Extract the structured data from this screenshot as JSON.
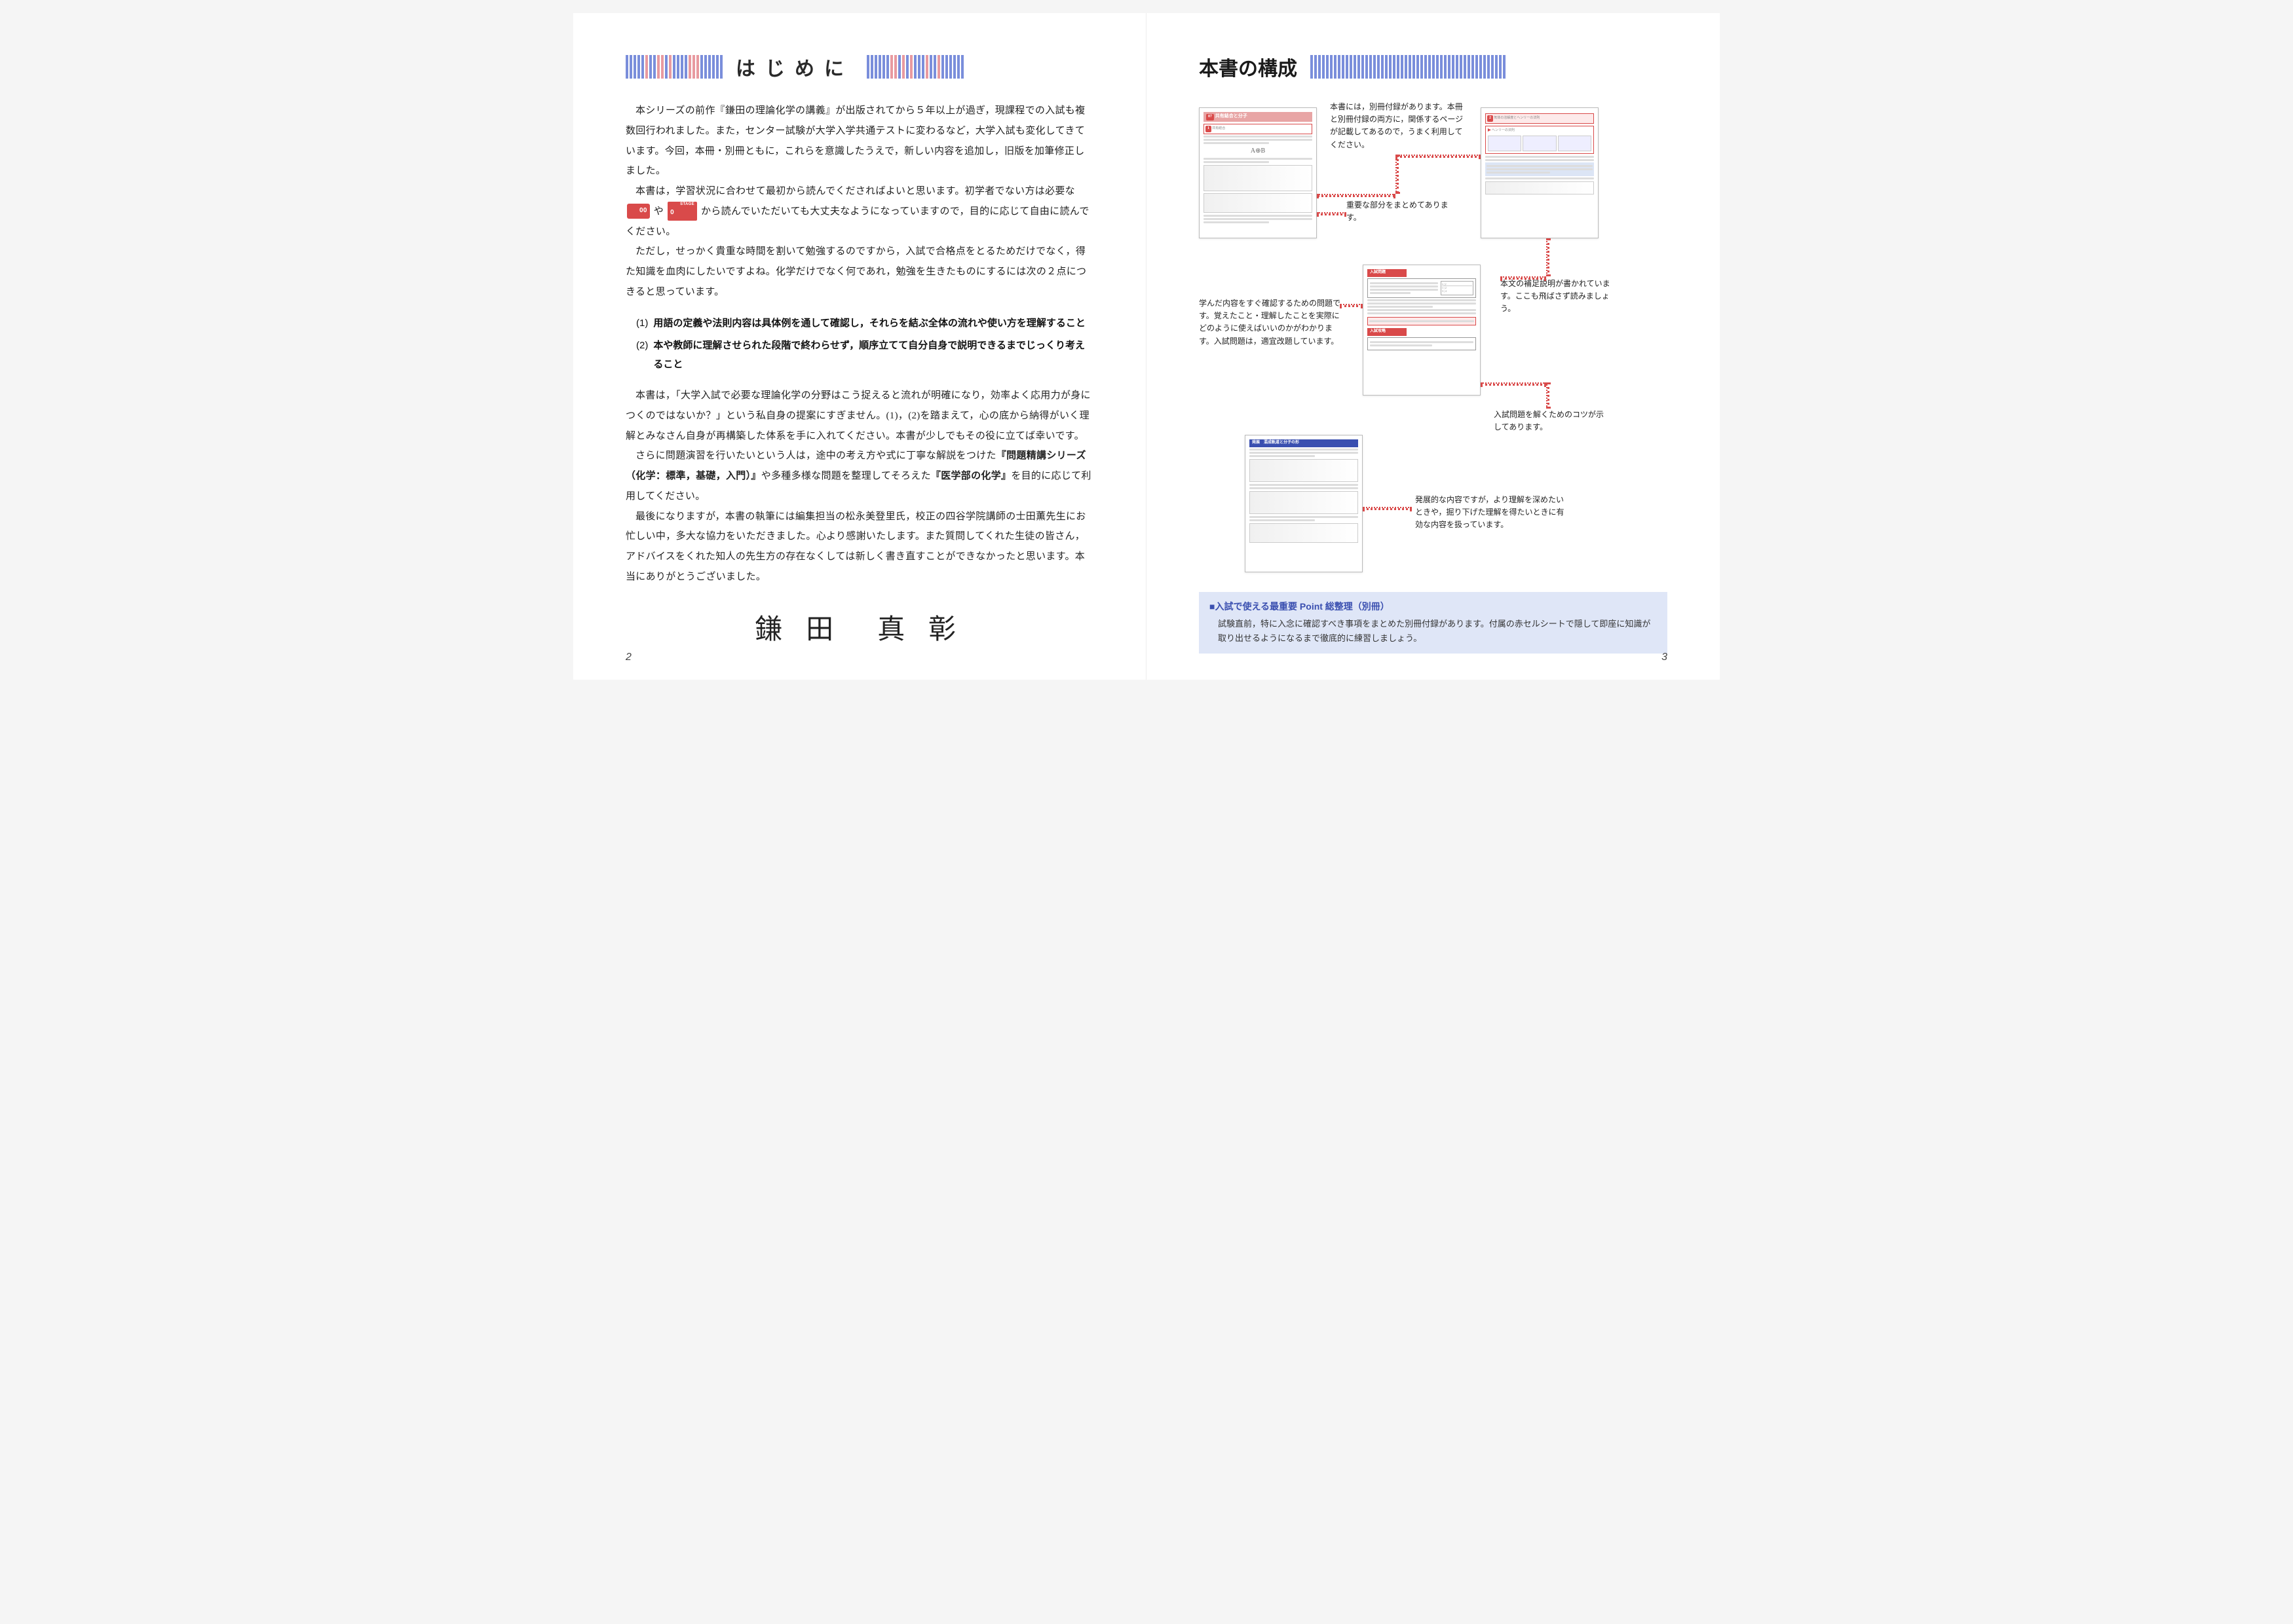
{
  "left_page": {
    "title": "はじめに",
    "page_number": "2",
    "paragraphs": {
      "p1": "本シリーズの前作『鎌田の理論化学の講義』が出版されてから５年以上が過ぎ，現課程での入試も複数回行われました。また，センター試験が大学入学共通テストに変わるなど，大学入試も変化してきています。今回，本冊・別冊ともに，これらを意識したうえで，新しい内容を追加し，旧版を加筆修正しました。",
      "p2a": "本書は，学習状況に合わせて最初から読んでくださればよいと思います。初学者でない方は必要な",
      "p2b": "や",
      "p2c": "から読んでいただいても大丈夫なようになっていますので，目的に応じて自由に読んでください。",
      "p3": "ただし，せっかく貴重な時間を割いて勉強するのですから，入試で合格点をとるためだけでなく，得た知識を血肉にしたいですよね。化学だけでなく何であれ，勉強を生きたものにするには次の２点につきると思っています。",
      "list1_num": "(1)",
      "list1": "用語の定義や法則内容は具体例を通して確認し，それらを結ぶ全体の流れや使い方を理解すること",
      "list2_num": "(2)",
      "list2": "本や教師に理解させられた段階で終わらせず，順序立てて自分自身で説明できるまでじっくり考えること",
      "p4": "本書は，「大学入試で必要な理論化学の分野はこう捉えると流れが明確になり，効率よく応用力が身につくのではないか？」という私自身の提案にすぎません。(1)，(2)を踏まえて，心の底から納得がいく理解とみなさん自身が再構築した体系を手に入れてください。本書が少しでもその役に立てば幸いです。",
      "p5a": "さらに問題演習を行いたいという人は，途中の考え方や式に丁寧な解説をつけた",
      "p5bold": "『問題精講シリーズ（化学：標準，基礎，入門）』",
      "p5b": "や多種多様な問題を整理してそろえた",
      "p5bold2": "『医学部の化学』",
      "p5c": "を目的に応じて利用してください。",
      "p6": "最後になりますが，本書の執筆には編集担当の松永美登里氏，校正の四谷学院講師の士田薫先生にお忙しい中，多大な協力をいただきました。心より感謝いたします。また質問してくれた生徒の皆さん，アドバイスをくれた知人の先生方の存在なくしては新しく書き直すことができなかったと思います。本当にありがとうございました。"
    },
    "badge1": "00",
    "badge2": "0",
    "badge2_label": "STAGE",
    "signature": "鎌 田　真 彰"
  },
  "right_page": {
    "title": "本書の構成",
    "page_number": "3",
    "callouts": {
      "c1": "本書には，別冊付録があります。本冊と別冊付録の両方に，関係するページが記載してあるので，うまく利用してください。",
      "c2": "重要な部分をまとめてあります。",
      "c3": "本文の補足説明が書かれています。ここも飛ばさず読みましょう。",
      "c4": "学んだ内容をすぐ確認するための問題です。覚えたこと・理解したことを実際にどのように使えばいいのかがわかります。入試問題は，適宜改題しています。",
      "c5": "入試問題を解くためのコツが示してあります。",
      "c6": "発展的な内容ですが，より理解を深めたいときや，掘り下げた理解を得たいときに有効な内容を扱っています。"
    },
    "samples": {
      "s1_num": "07",
      "s1_title": "共有結合と分子",
      "s1_sub": "共有結合",
      "s2_title": "気体の溶解度とヘンリーの法則",
      "s2_sub": "ヘンリーの法則"
    },
    "bottom_box": {
      "title": "■入試で使える最重要 Point 総整理（別冊）",
      "body": "試験直前，特に入念に確認すべき事項をまとめた別冊付録があります。付属の赤セルシートで隠して即座に知識が取り出せるようになるまで徹底的に練習しましょう。"
    }
  },
  "colors": {
    "barcode_blue": "#7a8edb",
    "barcode_red": "#e89aa0",
    "accent_red": "#d94a4a",
    "box_bg": "#dfe6f7",
    "box_title": "#3a4fb0"
  },
  "barcode_pattern_left_leading": [
    "b",
    "b",
    "b",
    "b",
    "b",
    "r",
    "b",
    "b",
    "r",
    "r",
    "b",
    "r",
    "b",
    "b",
    "b",
    "b",
    "r",
    "r",
    "r",
    "b",
    "b",
    "b",
    "b",
    "b",
    "b"
  ],
  "barcode_pattern_trailing": [
    "b",
    "b",
    "b",
    "b",
    "b",
    "b",
    "r",
    "r",
    "b",
    "r",
    "b",
    "r",
    "b",
    "b",
    "b",
    "r",
    "b",
    "b",
    "r",
    "b",
    "b",
    "b",
    "b",
    "b",
    "b"
  ],
  "barcode_pattern_right": [
    "b",
    "b",
    "b",
    "b",
    "b",
    "b",
    "b",
    "b",
    "b",
    "b",
    "b",
    "b",
    "b",
    "b",
    "b",
    "b",
    "b",
    "b",
    "b",
    "b",
    "b",
    "b",
    "b",
    "b",
    "b",
    "b",
    "b",
    "b",
    "b",
    "b",
    "b",
    "b",
    "b",
    "b",
    "b",
    "b",
    "b",
    "b",
    "b",
    "b",
    "b",
    "b",
    "b",
    "b",
    "b",
    "b",
    "b",
    "b",
    "b",
    "b"
  ]
}
